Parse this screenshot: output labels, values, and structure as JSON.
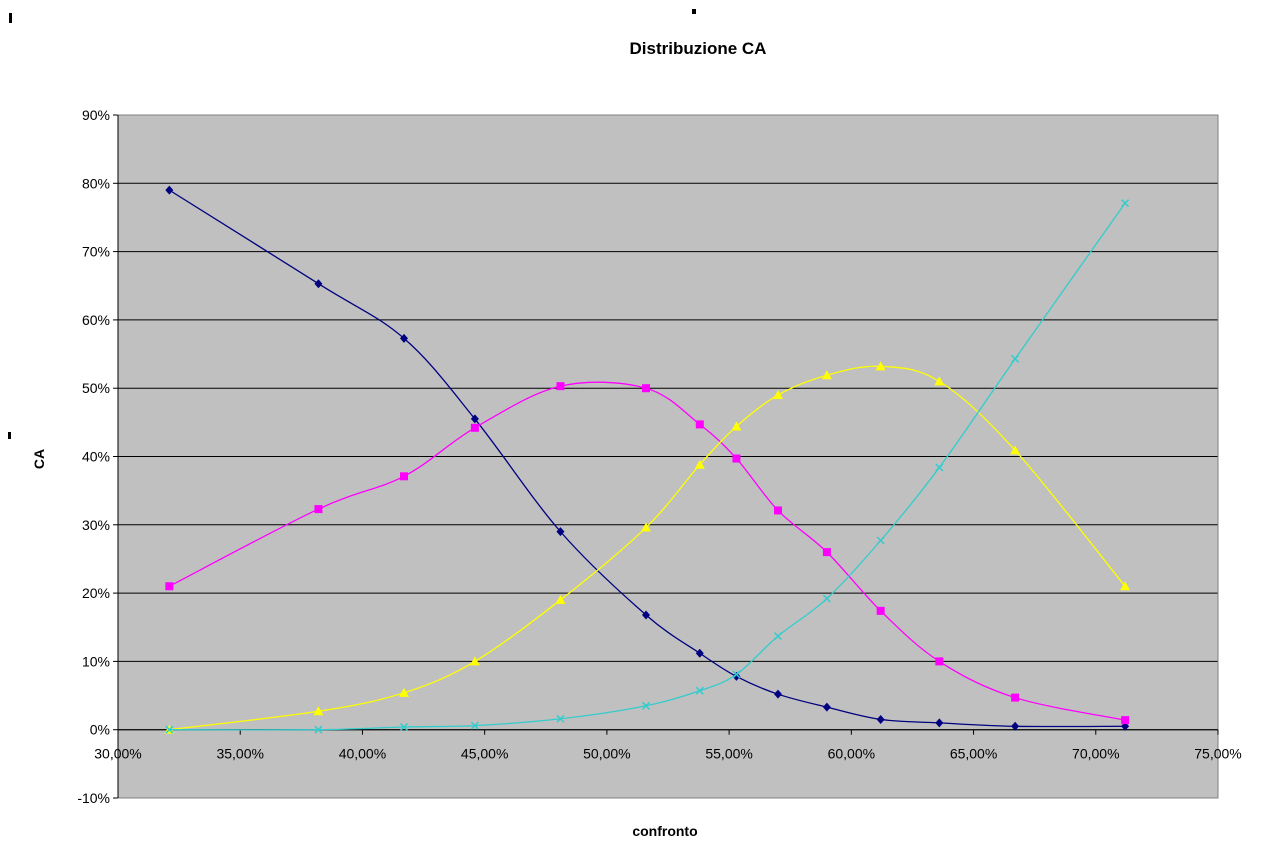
{
  "chart_data": {
    "type": "line",
    "title": "Distribuzione CA",
    "xlabel": "confronto",
    "ylabel": "CA",
    "xlim": [
      0.3,
      0.75
    ],
    "ylim": [
      -0.1,
      0.9
    ],
    "x_ticks": [
      "30,00%",
      "35,00%",
      "40,00%",
      "45,00%",
      "50,00%",
      "55,00%",
      "60,00%",
      "65,00%",
      "70,00%",
      "75,00%"
    ],
    "y_ticks": [
      "-10%",
      "0%",
      "10%",
      "20%",
      "30%",
      "40%",
      "50%",
      "60%",
      "70%",
      "80%",
      "90%"
    ],
    "grid": true,
    "legend": "none",
    "plot_background": "#c0c0c0",
    "x": [
      0.321,
      0.382,
      0.417,
      0.446,
      0.481,
      0.516,
      0.538,
      0.553,
      0.57,
      0.59,
      0.612,
      0.636,
      0.667,
      0.712
    ],
    "series": [
      {
        "color": "#000080",
        "marker": "diamond",
        "values": [
          0.79,
          0.653,
          0.573,
          0.455,
          0.29,
          0.168,
          0.112,
          0.078,
          0.052,
          0.033,
          0.015,
          0.01,
          0.005,
          0.005
        ]
      },
      {
        "color": "#ff00ff",
        "marker": "square",
        "values": [
          0.21,
          0.323,
          0.371,
          0.442,
          0.503,
          0.5,
          0.447,
          0.397,
          0.321,
          0.26,
          0.174,
          0.1,
          0.047,
          0.014
        ]
      },
      {
        "color": "#ffff00",
        "marker": "triangle",
        "values": [
          0.0,
          0.027,
          0.054,
          0.1,
          0.19,
          0.296,
          0.388,
          0.444,
          0.49,
          0.519,
          0.532,
          0.51,
          0.409,
          0.21
        ]
      },
      {
        "color": "#33cccc",
        "marker": "x",
        "values": [
          0.0,
          0.0,
          0.004,
          0.006,
          0.016,
          0.035,
          0.057,
          0.081,
          0.137,
          0.192,
          0.277,
          0.384,
          0.543,
          0.771
        ]
      }
    ]
  }
}
